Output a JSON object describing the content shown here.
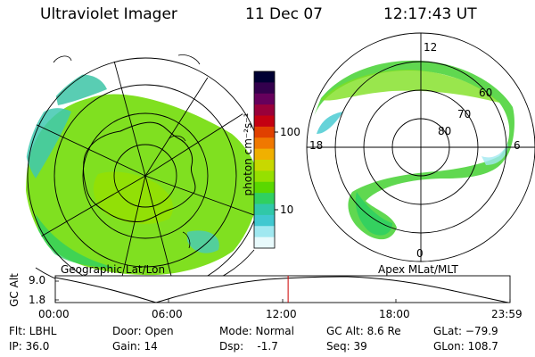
{
  "header": {
    "instrument": "Ultraviolet Imager",
    "date": "11 Dec 07",
    "time": "12:17:43 UT"
  },
  "left_panel": {
    "label": "Geographic Lat/Lon"
  },
  "right_panel": {
    "label": "Apex MLat/MLT",
    "mlt_labels": [
      "12",
      "18",
      "6",
      "0"
    ],
    "lat_labels": [
      "60",
      "70",
      "80"
    ]
  },
  "colorbar": {
    "unit_label": "photon cm⁻²s⁻¹",
    "tick_labels": [
      "100",
      "10"
    ],
    "colors": [
      "#000033",
      "#33004d",
      "#66005c",
      "#99003a",
      "#c40012",
      "#e04000",
      "#f07800",
      "#f0b000",
      "#c8d800",
      "#96e000",
      "#5ad800",
      "#30d060",
      "#30c8a8",
      "#40c8d0",
      "#a0e8f0",
      "#e8fafc"
    ]
  },
  "altitude_plot": {
    "y_axis_label": "GC Alt",
    "y_ticks": [
      "9.0",
      "1.8"
    ],
    "x_ticks": [
      "00:00",
      "06:00",
      "12:00",
      "18:00",
      "23:59"
    ],
    "current_time_fraction": 0.512,
    "marker_color": "#cc0000"
  },
  "status": {
    "filter": "Flt: LBHL",
    "ip": "IP: 36.0",
    "door": "Door: Open",
    "gain": "Gain: 14",
    "mode": "Mode: Normal",
    "dsp": "Dsp:    -1.7",
    "gc_alt": "GC Alt: 8.6 Re",
    "seq": "Seq: 39",
    "glat": "GLat: −79.9",
    "glon": "GLon: 108.7"
  }
}
